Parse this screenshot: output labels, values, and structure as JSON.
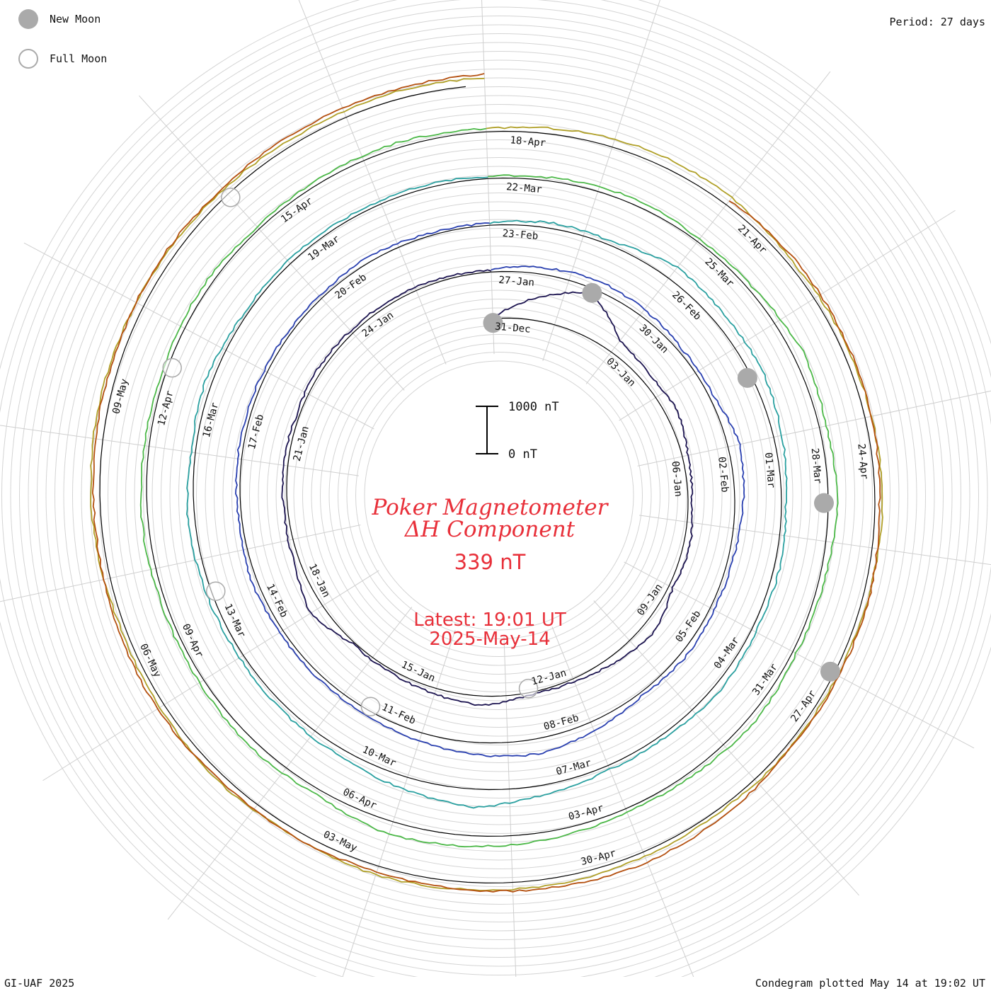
{
  "legend": {
    "new_moon": "New Moon",
    "full_moon": "Full Moon"
  },
  "period": "Period: 27 days",
  "footer": {
    "credit": "GI-UAF 2025",
    "plotted": "Condegram plotted May 14 at 19:02 UT"
  },
  "chart_data": {
    "type": "line",
    "subtype": "condegram-spiral",
    "title": "Poker Magnetometer",
    "subtitle": "ΔH Component",
    "current_value": "339 nT",
    "latest_time": "Latest: 19:01 UT",
    "latest_date": "2025-May-14",
    "scale_bar": {
      "top_label": "1000 nT",
      "bottom_label": "0 nT",
      "range_nT": [
        0,
        1000
      ]
    },
    "period_days": 27,
    "start_date": "2024-12-31",
    "end_date": "2025-05-14",
    "moon_markers": {
      "new_moon_dates": [
        "2024-12-31",
        "2025-01-29",
        "2025-02-28",
        "2025-03-29",
        "2025-04-27"
      ],
      "full_moon_dates": [
        "2025-01-13",
        "2025-02-12",
        "2025-03-14",
        "2025-04-13",
        "2025-05-12"
      ]
    },
    "date_labels": [
      {
        "day": 0,
        "text": "31-Dec"
      },
      {
        "day": 3,
        "text": "03-Jan"
      },
      {
        "day": 6,
        "text": "06-Jan"
      },
      {
        "day": 9,
        "text": "09-Jan"
      },
      {
        "day": 12,
        "text": "12-Jan"
      },
      {
        "day": 15,
        "text": "15-Jan"
      },
      {
        "day": 18,
        "text": "18-Jan"
      },
      {
        "day": 21,
        "text": "21-Jan"
      },
      {
        "day": 24,
        "text": "24-Jan"
      },
      {
        "day": 27,
        "text": "27-Jan"
      },
      {
        "day": 30,
        "text": "30-Jan"
      },
      {
        "day": 33,
        "text": "02-Feb"
      },
      {
        "day": 36,
        "text": "05-Feb"
      },
      {
        "day": 39,
        "text": "08-Feb"
      },
      {
        "day": 42,
        "text": "11-Feb"
      },
      {
        "day": 45,
        "text": "14-Feb"
      },
      {
        "day": 48,
        "text": "17-Feb"
      },
      {
        "day": 51,
        "text": "20-Feb"
      },
      {
        "day": 54,
        "text": "23-Feb"
      },
      {
        "day": 57,
        "text": "26-Feb"
      },
      {
        "day": 60,
        "text": "01-Mar"
      },
      {
        "day": 63,
        "text": "04-Mar"
      },
      {
        "day": 66,
        "text": "07-Mar"
      },
      {
        "day": 69,
        "text": "10-Mar"
      },
      {
        "day": 72,
        "text": "13-Mar"
      },
      {
        "day": 75,
        "text": "16-Mar"
      },
      {
        "day": 78,
        "text": "19-Mar"
      },
      {
        "day": 81,
        "text": "22-Mar"
      },
      {
        "day": 84,
        "text": "25-Mar"
      },
      {
        "day": 87,
        "text": "28-Mar"
      },
      {
        "day": 90,
        "text": "31-Mar"
      },
      {
        "day": 93,
        "text": "03-Apr"
      },
      {
        "day": 96,
        "text": "06-Apr"
      },
      {
        "day": 99,
        "text": "09-Apr"
      },
      {
        "day": 102,
        "text": "12-Apr"
      },
      {
        "day": 105,
        "text": "15-Apr"
      },
      {
        "day": 108,
        "text": "18-Apr"
      },
      {
        "day": 111,
        "text": "21-Apr"
      },
      {
        "day": 114,
        "text": "24-Apr"
      },
      {
        "day": 117,
        "text": "27-Apr"
      },
      {
        "day": 120,
        "text": "30-Apr"
      },
      {
        "day": 123,
        "text": "03-May"
      },
      {
        "day": 126,
        "text": "06-May"
      },
      {
        "day": 129,
        "text": "09-May"
      }
    ],
    "series": [
      {
        "days": [
          0,
          27
        ],
        "values_nT": [
          30,
          500,
          900,
          300,
          180,
          250,
          120,
          80,
          140,
          90,
          260,
          150,
          60,
          40,
          200,
          120,
          60,
          40,
          300,
          120,
          80,
          100,
          60,
          90,
          70,
          80,
          60,
          40
        ],
        "color": "#1c1450"
      },
      {
        "days": [
          27,
          54
        ],
        "values_nT": [
          60,
          140,
          200,
          150,
          80,
          90,
          250,
          180,
          100,
          90,
          120,
          70,
          200,
          320,
          260,
          180,
          100,
          90,
          80,
          120,
          60,
          90,
          80,
          70,
          60,
          110,
          50,
          40
        ],
        "color": "#2a40b0"
      },
      {
        "days": [
          54,
          81
        ],
        "values_nT": [
          40,
          120,
          80,
          300,
          240,
          260,
          180,
          90,
          120,
          100,
          150,
          80,
          90,
          200,
          380,
          260,
          150,
          120,
          90,
          110,
          150,
          80,
          140,
          60,
          90,
          70,
          80,
          40
        ],
        "color": "#2aa0a0"
      },
      {
        "days": [
          81,
          108
        ],
        "values_nT": [
          40,
          80,
          120,
          60,
          90,
          220,
          150,
          200,
          110,
          80,
          150,
          90,
          70,
          160,
          220,
          280,
          120,
          150,
          100,
          90,
          130,
          100,
          80,
          120,
          60,
          90,
          110,
          60
        ],
        "color": "#4cb848"
      },
      {
        "days": [
          108,
          135
        ],
        "values_nT": [
          60,
          140,
          200,
          180,
          90,
          120,
          140,
          160,
          110,
          80,
          90,
          60,
          100,
          140,
          150,
          190,
          120,
          160,
          100,
          90,
          170,
          210,
          180,
          160,
          140,
          120,
          160,
          150
        ],
        "color": "#b0a028"
      },
      {
        "days": [
          111,
          135
        ],
        "values_nT": [
          120,
          160,
          150,
          140,
          90,
          130,
          110,
          100,
          180,
          230,
          200,
          160,
          120,
          140,
          110,
          170,
          150,
          130,
          150,
          160,
          190,
          170,
          200,
          210,
          230
        ],
        "color": "#b45010"
      }
    ],
    "ylabel": "nT"
  }
}
